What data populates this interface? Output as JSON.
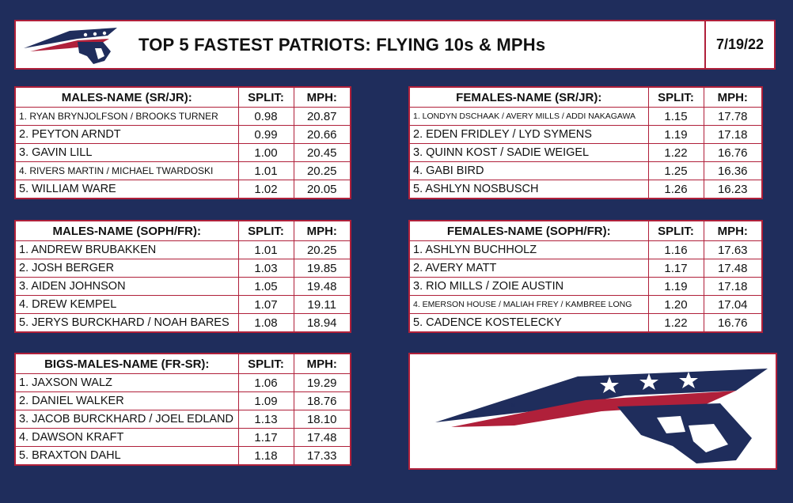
{
  "header": {
    "title": "TOP 5 FASTEST PATRIOTS: FLYING 10s & MPHs",
    "date": "7/19/22"
  },
  "colors": {
    "navy": "#1f2d5c",
    "red": "#b0203a",
    "white": "#ffffff"
  },
  "tables": {
    "males_srjr": {
      "headers": {
        "name": "MALES-NAME (SR/JR):",
        "split": "SPLIT:",
        "mph": "MPH:"
      },
      "rows": [
        {
          "name": "1. RYAN BRYNJOLFSON / BROOKS TURNER",
          "split": "0.98",
          "mph": "20.87"
        },
        {
          "name": "2. PEYTON ARNDT",
          "split": "0.99",
          "mph": "20.66"
        },
        {
          "name": "3. GAVIN LILL",
          "split": "1.00",
          "mph": "20.45"
        },
        {
          "name": "4. RIVERS MARTIN / MICHAEL TWARDOSKI",
          "split": "1.01",
          "mph": "20.25"
        },
        {
          "name": "5. WILLIAM WARE",
          "split": "1.02",
          "mph": "20.05"
        }
      ]
    },
    "females_srjr": {
      "headers": {
        "name": "FEMALES-NAME (SR/JR):",
        "split": "SPLIT:",
        "mph": "MPH:"
      },
      "rows": [
        {
          "name": "1. LONDYN DSCHAAK / AVERY MILLS / ADDI NAKAGAWA",
          "split": "1.15",
          "mph": "17.78"
        },
        {
          "name": "2. EDEN FRIDLEY / LYD SYMENS",
          "split": "1.19",
          "mph": "17.18"
        },
        {
          "name": "3. QUINN KOST / SADIE WEIGEL",
          "split": "1.22",
          "mph": "16.76"
        },
        {
          "name": "4. GABI BIRD",
          "split": "1.25",
          "mph": "16.36"
        },
        {
          "name": "5. ASHLYN NOSBUSCH",
          "split": "1.26",
          "mph": "16.23"
        }
      ]
    },
    "males_sophfr": {
      "headers": {
        "name": "MALES-NAME (SOPH/FR):",
        "split": "SPLIT:",
        "mph": "MPH:"
      },
      "rows": [
        {
          "name": "1. ANDREW BRUBAKKEN",
          "split": "1.01",
          "mph": "20.25"
        },
        {
          "name": "2. JOSH BERGER",
          "split": "1.03",
          "mph": "19.85"
        },
        {
          "name": "3. AIDEN JOHNSON",
          "split": "1.05",
          "mph": "19.48"
        },
        {
          "name": "4. DREW KEMPEL",
          "split": "1.07",
          "mph": "19.11"
        },
        {
          "name": "5. JERYS BURCKHARD / NOAH BARES",
          "split": "1.08",
          "mph": "18.94"
        }
      ]
    },
    "females_sophfr": {
      "headers": {
        "name": "FEMALES-NAME (SOPH/FR):",
        "split": "SPLIT:",
        "mph": "MPH:"
      },
      "rows": [
        {
          "name": "1. ASHLYN BUCHHOLZ",
          "split": "1.16",
          "mph": "17.63"
        },
        {
          "name": "2. AVERY MATT",
          "split": "1.17",
          "mph": "17.48"
        },
        {
          "name": "3. RIO MILLS / ZOIE AUSTIN",
          "split": "1.19",
          "mph": "17.18"
        },
        {
          "name": "4. EMERSON HOUSE / MALIAH FREY / KAMBREE LONG",
          "split": "1.20",
          "mph": "17.04"
        },
        {
          "name": "5. CADENCE KOSTELECKY",
          "split": "1.22",
          "mph": "16.76"
        }
      ]
    },
    "bigs_males": {
      "headers": {
        "name": "BIGS-MALES-NAME (FR-SR):",
        "split": "SPLIT:",
        "mph": "MPH:"
      },
      "rows": [
        {
          "name": "1. JAXSON WALZ",
          "split": "1.06",
          "mph": "19.29"
        },
        {
          "name": "2. DANIEL WALKER",
          "split": "1.09",
          "mph": "18.76"
        },
        {
          "name": "3. JACOB BURCKHARD / JOEL EDLAND",
          "split": "1.13",
          "mph": "18.10"
        },
        {
          "name": "4. DAWSON KRAFT",
          "split": "1.17",
          "mph": "17.48"
        },
        {
          "name": "5. BRAXTON DAHL",
          "split": "1.18",
          "mph": "17.33"
        }
      ]
    }
  },
  "logo": {
    "name": "patriot-logo-icon",
    "trademark": "TM"
  }
}
